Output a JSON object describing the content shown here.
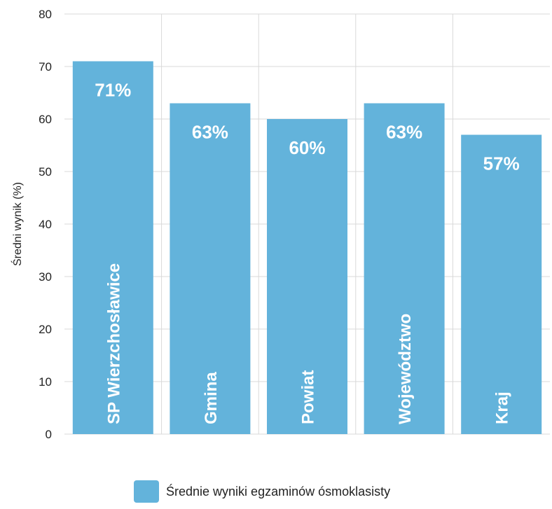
{
  "chart_data": {
    "type": "bar",
    "categories": [
      "SP Wierzchosławice",
      "Gmina",
      "Powiat",
      "Województwo",
      "Kraj"
    ],
    "series": [
      {
        "name": "Średnie wyniki egzaminów ósmoklasisty",
        "values": [
          71,
          63,
          60,
          63,
          57
        ],
        "data_labels": [
          "71%",
          "63%",
          "60%",
          "63%",
          "57%"
        ]
      }
    ],
    "title": "",
    "xlabel": "",
    "ylabel": "Średni wynik (%)",
    "ylim": [
      0,
      80
    ],
    "yticks": [
      0,
      10,
      20,
      30,
      40,
      50,
      60,
      70,
      80
    ],
    "grid": true,
    "legend_position": "bottom-center",
    "colors": {
      "bar": "#63b3db",
      "grid": "#d9d9d9",
      "text": "#222222",
      "label": "#ffffff"
    }
  }
}
